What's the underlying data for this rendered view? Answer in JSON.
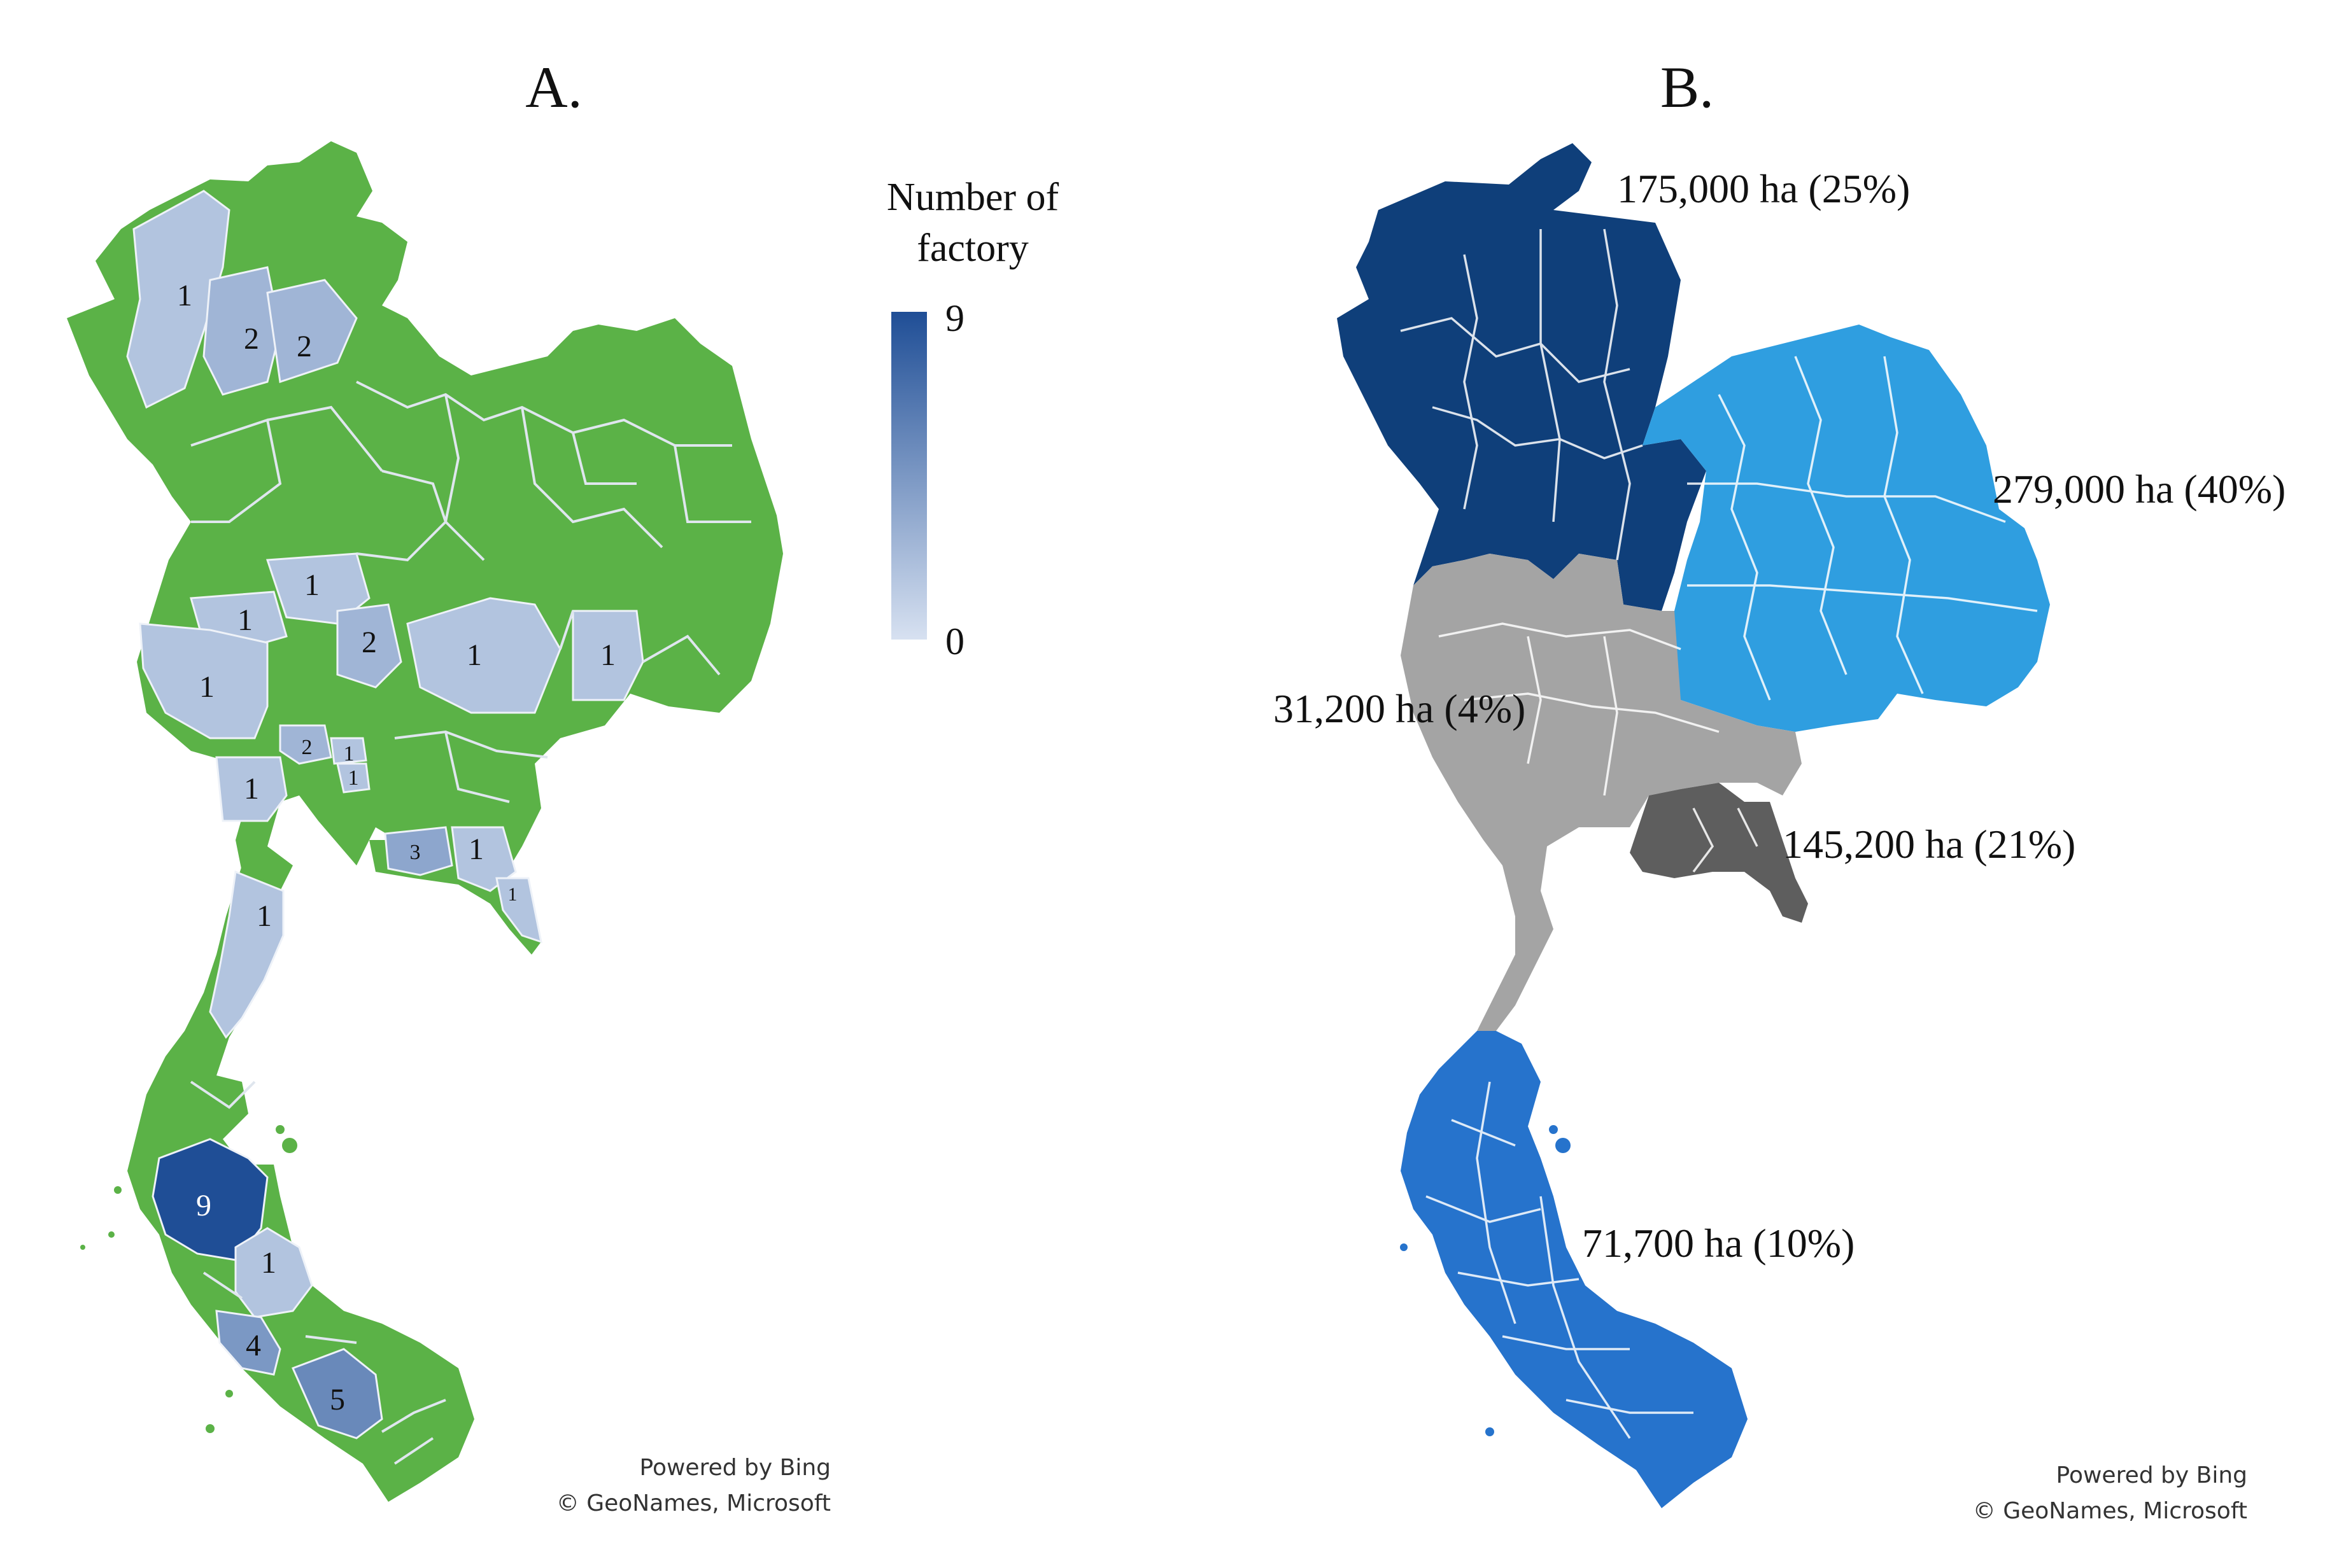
{
  "panels": {
    "a": {
      "title": "A.",
      "legend": {
        "title_line1": "Number of",
        "title_line2": "factory",
        "max_label": "9",
        "min_label": "0",
        "max_value": 9,
        "min_value": 0,
        "color_low": "#d7e1f1",
        "color_high": "#1f4e96"
      },
      "base_color": "#5bb247",
      "factory_counts": [
        {
          "id": "n1",
          "label": "1",
          "value": 1
        },
        {
          "id": "n2a",
          "label": "2",
          "value": 2
        },
        {
          "id": "n2b",
          "label": "2",
          "value": 2
        },
        {
          "id": "c1a",
          "label": "1",
          "value": 1
        },
        {
          "id": "c1b",
          "label": "1",
          "value": 1
        },
        {
          "id": "c2",
          "label": "2",
          "value": 2
        },
        {
          "id": "ne1a",
          "label": "1",
          "value": 1
        },
        {
          "id": "ne1b",
          "label": "1",
          "value": 1
        },
        {
          "id": "w1",
          "label": "1",
          "value": 1
        },
        {
          "id": "c2b",
          "label": "2",
          "value": 2
        },
        {
          "id": "c1c",
          "label": "1",
          "value": 1
        },
        {
          "id": "c1d",
          "label": "1",
          "value": 1
        },
        {
          "id": "w1b",
          "label": "1",
          "value": 1
        },
        {
          "id": "e3",
          "label": "3",
          "value": 3
        },
        {
          "id": "e1",
          "label": "1",
          "value": 1
        },
        {
          "id": "e1b",
          "label": "1",
          "value": 1
        },
        {
          "id": "s1",
          "label": "1",
          "value": 1
        },
        {
          "id": "s9",
          "label": "9",
          "value": 9
        },
        {
          "id": "s1b",
          "label": "1",
          "value": 1
        },
        {
          "id": "s4",
          "label": "4",
          "value": 4
        },
        {
          "id": "s5",
          "label": "5",
          "value": 5
        }
      ],
      "credit_line1": "Powered by Bing",
      "credit_line2": "© GeoNames, Microsoft"
    },
    "b": {
      "title": "B.",
      "regions": [
        {
          "id": "north",
          "label": "175,000 ha (25%)",
          "area_ha": 175000,
          "share_pct": 25,
          "color": "#0f3f7a"
        },
        {
          "id": "northeast",
          "label": "279,000 ha (40%)",
          "area_ha": 279000,
          "share_pct": 40,
          "color": "#2f9ee0"
        },
        {
          "id": "central",
          "label": "31,200 ha (4%)",
          "area_ha": 31200,
          "share_pct": 4,
          "color": "#a4a4a4"
        },
        {
          "id": "east",
          "label": "145,200 ha (21%)",
          "area_ha": 145200,
          "share_pct": 21,
          "color": "#5e5e5e"
        },
        {
          "id": "south",
          "label": "71,700 ha (10%)",
          "area_ha": 71700,
          "share_pct": 10,
          "color": "#2673cc"
        }
      ],
      "credit_line1": "Powered by Bing",
      "credit_line2": "© GeoNames, Microsoft"
    }
  }
}
